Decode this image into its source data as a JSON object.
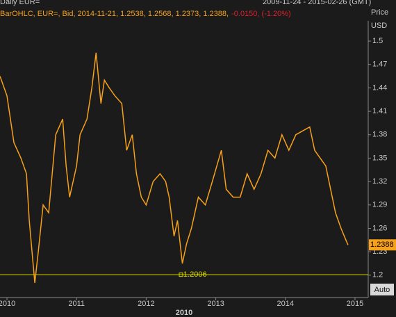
{
  "chart_data": {
    "type": "line",
    "title": "Daily EUR=",
    "date_range": "2009-11-24 - 2015-02-26 (GMT)",
    "legend_text": "BarOHLC, EUR=, Bid, 2014-11-21, 1.2538, 1.2568, 1.2373, 1.2388,",
    "change_text": "-0.0150, (-1.20%)",
    "ylabel_1": "Price",
    "ylabel_2": "USD",
    "x_secondary_label": "2010",
    "auto_button": "Auto",
    "color": "#f7a11a",
    "change_color": "#e0202a",
    "reference_color": "#d8d800",
    "x": [
      2009.9,
      2010.0,
      2010.1,
      2010.2,
      2010.28,
      2010.32,
      2010.37,
      2010.4,
      2010.45,
      2010.52,
      2010.6,
      2010.7,
      2010.8,
      2010.85,
      2010.9,
      2011.0,
      2011.05,
      2011.15,
      2011.22,
      2011.28,
      2011.35,
      2011.4,
      2011.47,
      2011.55,
      2011.65,
      2011.72,
      2011.8,
      2011.86,
      2011.93,
      2012.0,
      2012.1,
      2012.2,
      2012.28,
      2012.33,
      2012.4,
      2012.45,
      2012.52,
      2012.58,
      2012.65,
      2012.75,
      2012.85,
      2012.95,
      2013.08,
      2013.15,
      2013.25,
      2013.35,
      2013.45,
      2013.55,
      2013.65,
      2013.75,
      2013.85,
      2013.95,
      2014.05,
      2014.15,
      2014.25,
      2014.35,
      2014.42,
      2014.5,
      2014.58,
      2014.65,
      2014.72,
      2014.8,
      2014.87,
      2014.9
    ],
    "values": [
      1.455,
      1.43,
      1.37,
      1.35,
      1.33,
      1.27,
      1.22,
      1.19,
      1.23,
      1.29,
      1.28,
      1.38,
      1.4,
      1.34,
      1.3,
      1.34,
      1.38,
      1.4,
      1.44,
      1.485,
      1.42,
      1.45,
      1.44,
      1.43,
      1.42,
      1.36,
      1.38,
      1.33,
      1.3,
      1.29,
      1.32,
      1.33,
      1.32,
      1.3,
      1.25,
      1.27,
      1.215,
      1.24,
      1.26,
      1.3,
      1.29,
      1.32,
      1.36,
      1.31,
      1.3,
      1.3,
      1.33,
      1.31,
      1.33,
      1.36,
      1.35,
      1.38,
      1.36,
      1.38,
      1.385,
      1.39,
      1.36,
      1.35,
      1.34,
      1.31,
      1.28,
      1.26,
      1.245,
      1.2388
    ],
    "last_value": 1.2388,
    "reference_value": 1.2006,
    "xlim": [
      2009.9,
      2015.19
    ],
    "xticks": [
      2010,
      2011,
      2012,
      2013,
      2014,
      2015
    ],
    "ylim": [
      1.174,
      1.517
    ],
    "yticks": [
      1.2,
      1.23,
      1.26,
      1.29,
      1.32,
      1.35,
      1.38,
      1.41,
      1.44,
      1.47,
      1.5
    ]
  }
}
